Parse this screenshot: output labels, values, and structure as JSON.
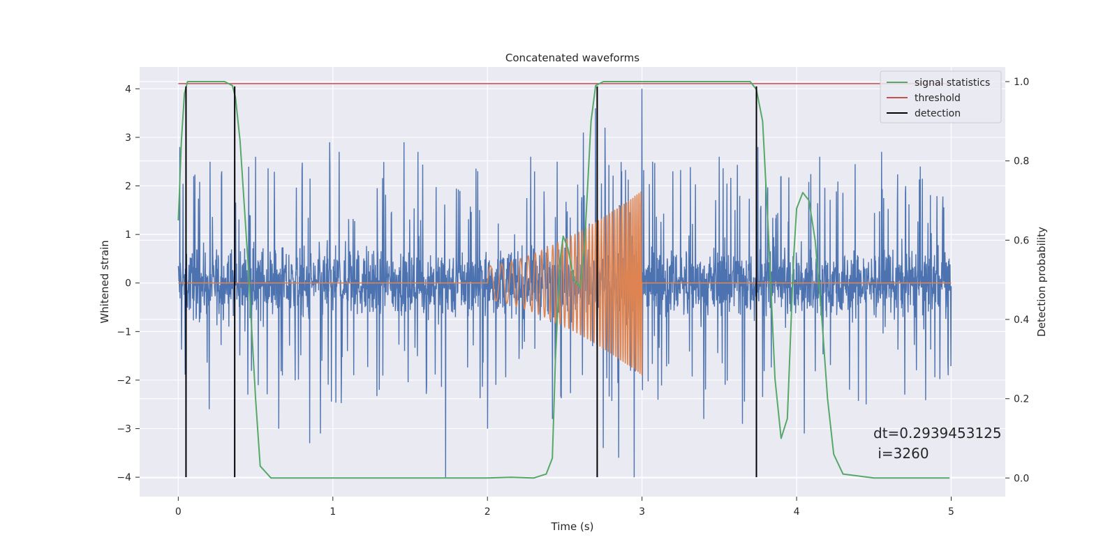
{
  "chart_data": {
    "type": "line",
    "title": "Concatenated waveforms",
    "xlabel": "Time (s)",
    "ylabel": "Whitened strain",
    "y2label": "Detection probability",
    "xlim": [
      -0.25,
      5.35
    ],
    "ylim": [
      -4.4,
      4.45
    ],
    "y2lim": [
      -0.047,
      1.037
    ],
    "xticks": [
      0,
      1,
      2,
      3,
      4,
      5
    ],
    "xtick_labels": [
      "0",
      "1",
      "2",
      "3",
      "4",
      "5"
    ],
    "yticks": [
      -4,
      -3,
      -2,
      -1,
      0,
      1,
      2,
      3,
      4
    ],
    "ytick_labels": [
      "−4",
      "−3",
      "−2",
      "−1",
      "0",
      "1",
      "2",
      "3",
      "4"
    ],
    "y2ticks": [
      0.0,
      0.2,
      0.4,
      0.6,
      0.8,
      1.0
    ],
    "y2tick_labels": [
      "0.0",
      "0.2",
      "0.4",
      "0.6",
      "0.8",
      "1.0"
    ],
    "grid": true,
    "legend_position": "top-right",
    "legend": [
      {
        "label": "signal statistics",
        "color": "#55a868"
      },
      {
        "label": "threshold",
        "color": "#c44e52"
      },
      {
        "label": "detection",
        "color": "#000000"
      }
    ],
    "series": [
      {
        "role": "strain noise",
        "color": "#4c72b0",
        "axis": "left",
        "x_range": [
          0,
          5
        ],
        "typical_range": [
          -0.8,
          0.8
        ],
        "peaks": [
          [
            0.01,
            2.8
          ],
          [
            0.1,
            2.2
          ],
          [
            0.28,
            2.3
          ],
          [
            0.5,
            2.6
          ],
          [
            0.65,
            2.8
          ],
          [
            0.98,
            2.9
          ],
          [
            1.04,
            2.7
          ],
          [
            1.46,
            2.9
          ],
          [
            1.55,
            2.7
          ],
          [
            2.28,
            2.6
          ],
          [
            2.45,
            2.5
          ],
          [
            2.62,
            3.1
          ],
          [
            2.7,
            3.6
          ],
          [
            2.76,
            3.2
          ],
          [
            2.95,
            4.0
          ],
          [
            3.0,
            4.0
          ],
          [
            3.2,
            2.3
          ],
          [
            3.5,
            2.6
          ],
          [
            3.75,
            2.8
          ],
          [
            3.9,
            2.2
          ],
          [
            4.15,
            2.6
          ],
          [
            4.55,
            2.7
          ],
          [
            4.8,
            2.4
          ],
          [
            4.98,
            2.0
          ],
          [
            0.05,
            -2.9
          ],
          [
            0.2,
            -2.6
          ],
          [
            0.45,
            -2.3
          ],
          [
            0.65,
            -3.0
          ],
          [
            0.85,
            -3.3
          ],
          [
            0.92,
            -3.1
          ],
          [
            1.3,
            -2.2
          ],
          [
            1.73,
            -4.0
          ],
          [
            2.0,
            -3.0
          ],
          [
            2.42,
            -2.8
          ],
          [
            2.75,
            -3.4
          ],
          [
            2.85,
            -3.6
          ],
          [
            2.95,
            -4.0
          ],
          [
            3.4,
            -2.8
          ],
          [
            3.65,
            -2.9
          ],
          [
            4.05,
            -3.1
          ],
          [
            4.45,
            -2.5
          ],
          [
            4.7,
            -2.3
          ],
          [
            4.98,
            -1.9
          ]
        ]
      },
      {
        "role": "injected chirp",
        "color": "#dd8452",
        "axis": "left",
        "x_range": [
          0,
          5
        ],
        "chirp_start": 2.0,
        "chirp_end": 3.0,
        "amplitude_start": 0.35,
        "amplitude_end": 1.9,
        "frequency_start_hz": 13,
        "frequency_end_hz": 80
      },
      {
        "name": "signal statistics",
        "color": "#55a868",
        "axis": "right",
        "x": [
          0.0,
          0.02,
          0.04,
          0.06,
          0.08,
          0.12,
          0.2,
          0.3,
          0.35,
          0.37,
          0.4,
          0.45,
          0.5,
          0.53,
          0.6,
          1.0,
          1.5,
          2.0,
          2.15,
          2.3,
          2.38,
          2.42,
          2.44,
          2.47,
          2.49,
          2.52,
          2.56,
          2.6,
          2.63,
          2.67,
          2.7,
          2.75,
          2.9,
          3.3,
          3.7,
          3.74,
          3.78,
          3.82,
          3.86,
          3.9,
          3.94,
          3.98,
          4.0,
          4.04,
          4.08,
          4.12,
          4.16,
          4.2,
          4.24,
          4.3,
          4.5,
          4.8,
          4.99
        ],
        "y": [
          0.65,
          0.85,
          0.97,
          1.0,
          1.0,
          1.0,
          1.0,
          1.0,
          0.99,
          0.96,
          0.85,
          0.55,
          0.2,
          0.03,
          0.0,
          0.0,
          0.0,
          0.0,
          0.002,
          0.0,
          0.01,
          0.05,
          0.3,
          0.55,
          0.61,
          0.58,
          0.5,
          0.48,
          0.6,
          0.9,
          0.99,
          1.0,
          1.0,
          1.0,
          1.0,
          0.98,
          0.9,
          0.6,
          0.25,
          0.1,
          0.15,
          0.55,
          0.68,
          0.72,
          0.7,
          0.6,
          0.42,
          0.2,
          0.06,
          0.01,
          0.0,
          0.0,
          0.0
        ]
      },
      {
        "name": "threshold",
        "color": "#c44e52",
        "axis": "right",
        "x": [
          0,
          5
        ],
        "y": [
          0.995,
          0.995
        ]
      }
    ],
    "detection_lines": {
      "color": "#000000",
      "x": [
        0.05,
        0.365,
        2.71,
        3.74
      ],
      "y_from": -4.0,
      "y_to": 4.05
    },
    "annotation": [
      "dt=0.2939453125",
      " i=3260"
    ]
  },
  "colors": {
    "plot_background": "#eaeaf2",
    "grid": "#ffffff",
    "page_background": "#ffffff"
  }
}
